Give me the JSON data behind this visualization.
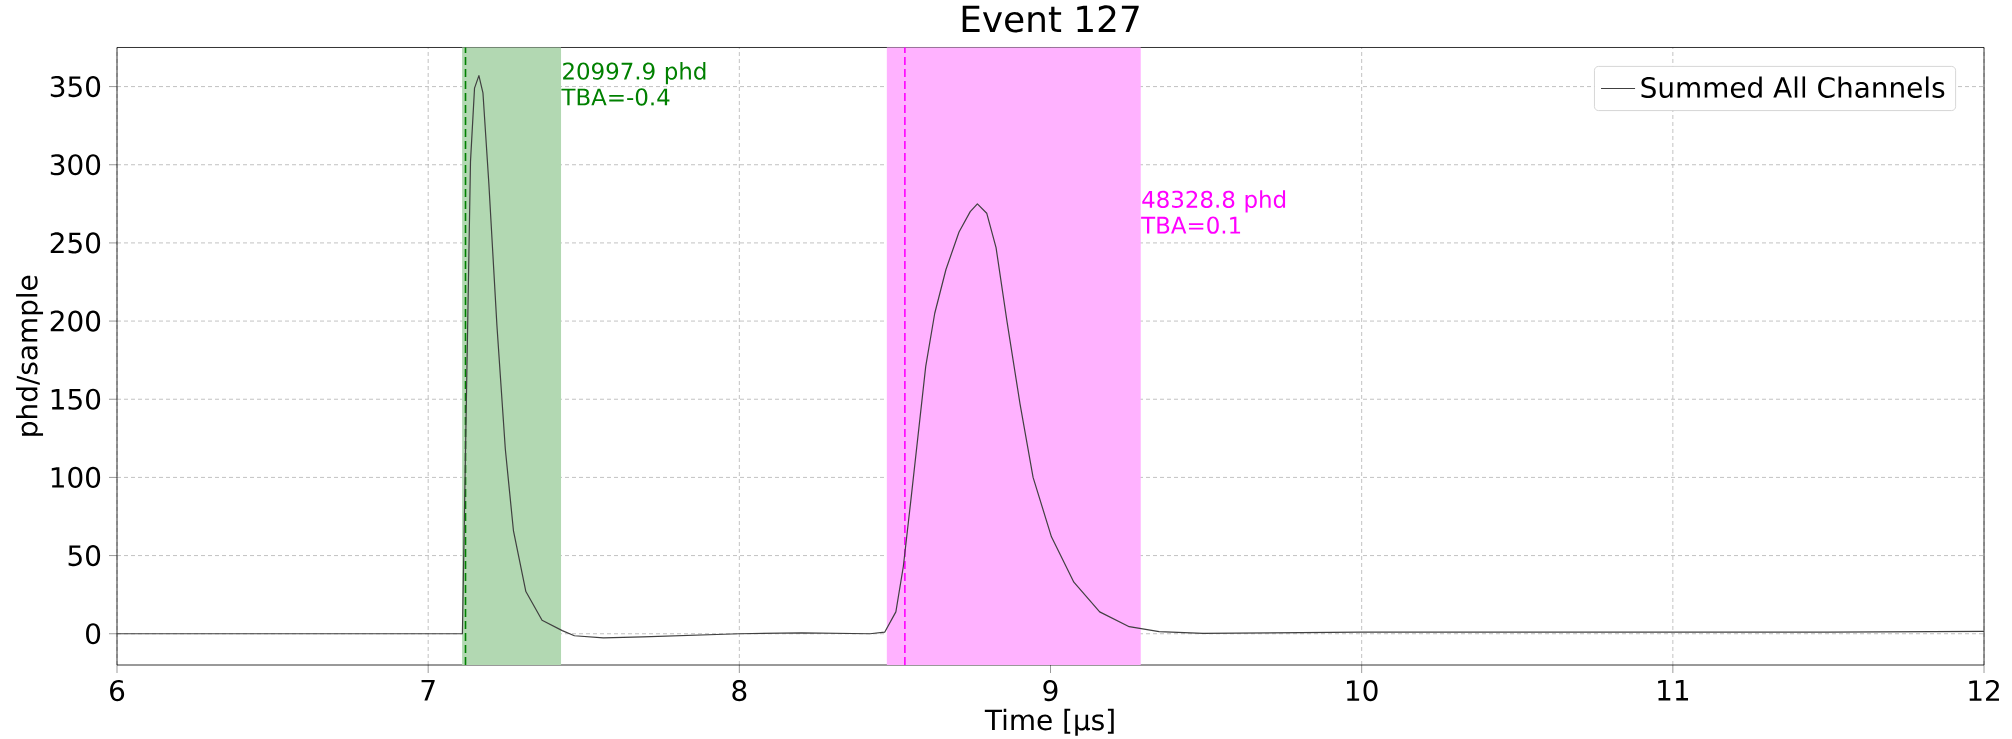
{
  "chart_data": {
    "type": "line",
    "title": "Event 127",
    "xlabel": "Time [μs]",
    "ylabel": "phd/sample",
    "series": [
      {
        "name": "Summed All Channels",
        "color": "#404040",
        "x": [
          6.0,
          6.5,
          7.0,
          7.1,
          7.11,
          7.123,
          7.136,
          7.149,
          7.163,
          7.176,
          7.195,
          7.221,
          7.248,
          7.274,
          7.314,
          7.366,
          7.431,
          7.47,
          7.563,
          7.69,
          8.0,
          8.2,
          8.42,
          8.467,
          8.503,
          8.527,
          8.551,
          8.575,
          8.599,
          8.628,
          8.664,
          8.706,
          8.742,
          8.765,
          8.795,
          8.825,
          8.86,
          8.902,
          8.944,
          9.003,
          9.075,
          9.158,
          9.253,
          9.349,
          9.49,
          10.0,
          10.5,
          11.0,
          11.5,
          12.0
        ],
        "values": [
          0,
          0,
          0,
          0,
          0,
          152,
          302,
          349,
          357,
          346,
          288,
          197,
          118,
          66,
          27,
          8.6,
          2,
          -1.3,
          -2.6,
          -2,
          0,
          0.5,
          0,
          1,
          14,
          43,
          85,
          128,
          171,
          205,
          233,
          257,
          270,
          275,
          269,
          247,
          200,
          147,
          100,
          62,
          33,
          14,
          4.5,
          1.4,
          0.2,
          1,
          1,
          1,
          1,
          1.5
        ]
      }
    ],
    "xlim": [
      6,
      12
    ],
    "ylim": [
      -20,
      375
    ],
    "xticks": [
      6,
      7,
      8,
      9,
      10,
      11,
      12
    ],
    "yticks": [
      0,
      50,
      100,
      150,
      200,
      250,
      300,
      350
    ],
    "grid": true,
    "legend": "top right",
    "bands": [
      {
        "axis": "x",
        "from": 7.109,
        "to": 7.427,
        "color": "#b2d8b2",
        "label": "20997.9 phd TBA=-0.4"
      },
      {
        "axis": "x",
        "from": 8.474,
        "to": 9.29,
        "color": "#ffb2ff",
        "label": "48328.8 phd TBA=0.1"
      }
    ],
    "ref_lines": [
      {
        "axis": "x",
        "value": 7.12,
        "color": "#008000",
        "line_style": "dashed"
      },
      {
        "axis": "x",
        "value": 8.532,
        "color": "#ff00ff",
        "line_style": "dashed"
      }
    ]
  }
}
